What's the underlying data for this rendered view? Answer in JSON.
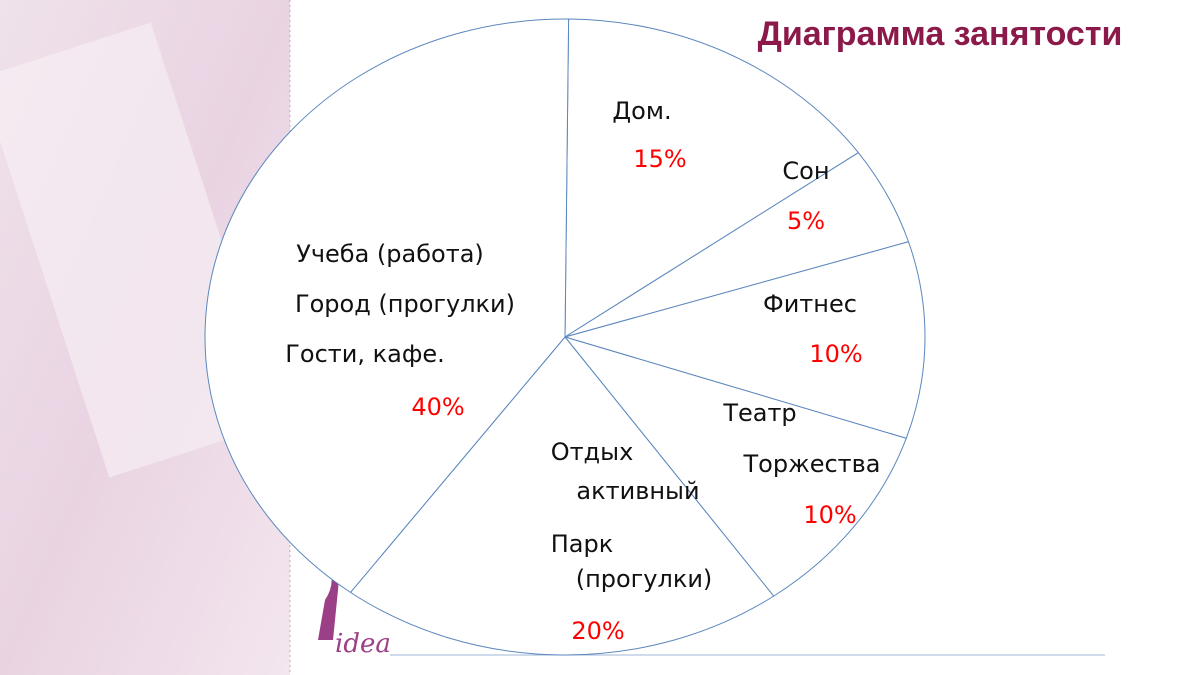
{
  "chart_data": {
    "type": "pie",
    "title": "Диаграмма занятости",
    "categories": [
      [
        "Дом."
      ],
      [
        "Сон"
      ],
      [
        "Фитнес"
      ],
      [
        "Театр",
        "Торжества"
      ],
      [
        "Отдых",
        "активный",
        "Парк",
        "(прогулки)"
      ],
      [
        "Учеба (работа)",
        "Город (прогулки)",
        "Гости, кафе."
      ]
    ],
    "values": [
      15,
      5,
      10,
      10,
      20,
      40
    ],
    "value_labels": [
      "15%",
      "5%",
      "10%",
      "10%",
      "20%",
      "40%"
    ],
    "color": "#ffffff",
    "label_color": "#ff0000"
  },
  "logo": "idea"
}
